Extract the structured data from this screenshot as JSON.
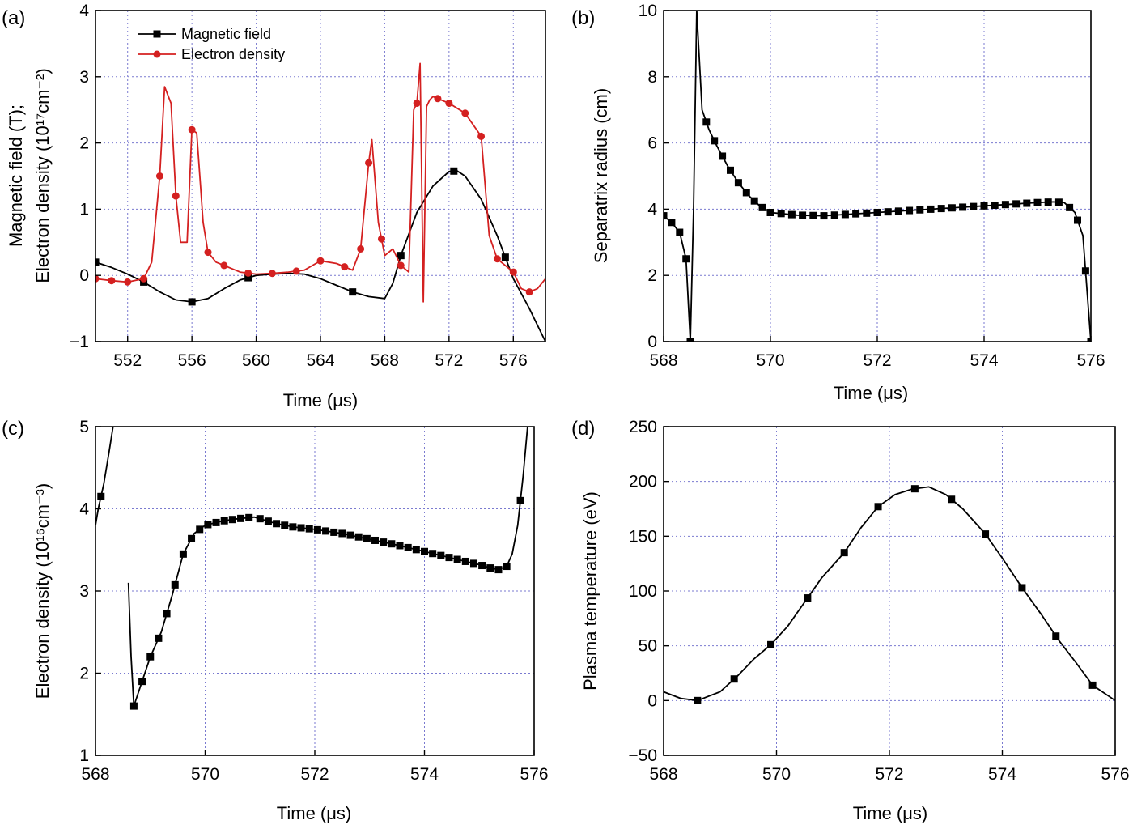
{
  "chart_data": [
    {
      "id": "a",
      "panel_label": "(a)",
      "type": "line",
      "xlabel": "Time (μs)",
      "ylabel_lines": [
        "Magnetic field (T);",
        "Electron density (10¹⁷cm⁻²)"
      ],
      "xlim": [
        550,
        578
      ],
      "ylim": [
        -1,
        4
      ],
      "xticks": [
        552,
        556,
        560,
        564,
        568,
        572,
        576
      ],
      "yticks": [
        -1,
        0,
        1,
        2,
        3,
        4
      ],
      "grid": true,
      "legend_position": "top-left",
      "series": [
        {
          "name": "Magnetic field",
          "color": "#000000",
          "marker": "square",
          "x": [
            550,
            551,
            552,
            553,
            554,
            555,
            556,
            557,
            558,
            559,
            560,
            561,
            562,
            563,
            564,
            565,
            566,
            567,
            568,
            568.5,
            569,
            570,
            571,
            572,
            572.5,
            573,
            574,
            575,
            576,
            577,
            578
          ],
          "y": [
            0.2,
            0.12,
            0.02,
            -0.1,
            -0.25,
            -0.37,
            -0.4,
            -0.35,
            -0.2,
            -0.07,
            0.0,
            0.02,
            0.03,
            0.02,
            -0.05,
            -0.15,
            -0.25,
            -0.32,
            -0.35,
            -0.12,
            0.3,
            0.95,
            1.35,
            1.57,
            1.58,
            1.5,
            1.15,
            0.6,
            -0.05,
            -0.5,
            -1.0
          ],
          "marker_x": [
            550,
            553,
            556,
            559.5,
            566,
            569,
            572.3,
            575.5
          ]
        },
        {
          "name": "Electron density",
          "color": "#d42020",
          "marker": "circle",
          "x": [
            550,
            551,
            552,
            553,
            553.5,
            554,
            554.3,
            554.7,
            555,
            555.3,
            555.7,
            556,
            556.3,
            556.7,
            557,
            557.5,
            558,
            559,
            560,
            561,
            562,
            563,
            564,
            565,
            566,
            566.5,
            567,
            567.2,
            567.6,
            568,
            568.5,
            569,
            569.5,
            569.8,
            570,
            570.2,
            570.4,
            570.6,
            570.8,
            571,
            571.5,
            572,
            573,
            574,
            574.5,
            575,
            576,
            576.5,
            577,
            577.5,
            578
          ],
          "y": [
            -0.05,
            -0.08,
            -0.1,
            -0.05,
            0.2,
            1.5,
            2.85,
            2.6,
            1.2,
            0.5,
            0.5,
            2.2,
            2.15,
            0.8,
            0.35,
            0.2,
            0.15,
            0.05,
            0.02,
            0.03,
            0.05,
            0.08,
            0.22,
            0.18,
            0.08,
            0.4,
            1.7,
            2.05,
            0.8,
            0.3,
            0.4,
            0.15,
            0.05,
            2.5,
            2.6,
            3.2,
            -0.4,
            2.55,
            2.65,
            2.7,
            2.65,
            2.6,
            2.45,
            2.1,
            0.6,
            0.25,
            0.05,
            -0.2,
            -0.25,
            -0.2,
            -0.05
          ],
          "marker_x": [
            550,
            551,
            552,
            553,
            554,
            555,
            556,
            557,
            558,
            559.5,
            561,
            562.5,
            564,
            565.5,
            566.5,
            567,
            567.8,
            569,
            570,
            571.3,
            572,
            573,
            574,
            575,
            576,
            577
          ]
        }
      ]
    },
    {
      "id": "b",
      "panel_label": "(b)",
      "type": "line",
      "xlabel": "Time (μs)",
      "ylabel": "Separatrix radius (cm)",
      "xlim": [
        568,
        576
      ],
      "ylim": [
        0,
        10
      ],
      "xticks": [
        568,
        570,
        572,
        574,
        576
      ],
      "yticks": [
        0,
        2,
        4,
        6,
        8,
        10
      ],
      "grid": true,
      "series": [
        {
          "name": "",
          "color": "#000000",
          "marker": "square",
          "x": [
            568.0,
            568.15,
            568.3,
            568.42,
            568.5,
            568.56,
            568.62,
            568.72,
            568.85,
            569.0,
            569.2,
            569.4,
            569.6,
            569.8,
            570.0,
            570.5,
            571.0,
            571.5,
            572.0,
            572.5,
            573.0,
            573.5,
            574.0,
            574.5,
            575.0,
            575.3,
            575.5,
            575.7,
            575.85,
            576.0
          ],
          "y": [
            3.8,
            3.6,
            3.3,
            2.5,
            0.0,
            4.0,
            10.0,
            7.0,
            6.4,
            5.9,
            5.3,
            4.8,
            4.4,
            4.1,
            3.9,
            3.82,
            3.8,
            3.85,
            3.9,
            3.95,
            4.0,
            4.05,
            4.1,
            4.15,
            4.2,
            4.22,
            4.2,
            3.9,
            3.2,
            0.0
          ],
          "marker_x": [
            568.0,
            568.15,
            568.3,
            568.42,
            568.5,
            568.8,
            568.95,
            569.1,
            569.25,
            569.4,
            569.55,
            569.7,
            569.85,
            570.0,
            570.2,
            570.4,
            570.6,
            570.8,
            571.0,
            571.2,
            571.4,
            571.6,
            571.8,
            572.0,
            572.2,
            572.4,
            572.6,
            572.8,
            573.0,
            573.2,
            573.4,
            573.6,
            573.8,
            574.0,
            574.2,
            574.4,
            574.6,
            574.8,
            575.0,
            575.2,
            575.4,
            575.6,
            575.75,
            575.9,
            576.0
          ]
        }
      ]
    },
    {
      "id": "c",
      "panel_label": "(c)",
      "type": "line",
      "xlabel": "Time (μs)",
      "ylabel": "Electron density (10¹⁶cm⁻³)",
      "xlim": [
        568,
        576
      ],
      "ylim": [
        1,
        5
      ],
      "xticks": [
        568,
        570,
        572,
        574,
        576
      ],
      "yticks": [
        1,
        2,
        3,
        4,
        5
      ],
      "grid": true,
      "series": [
        {
          "name": "",
          "color": "#000000",
          "marker": "square",
          "segments": [
            {
              "x": [
                568.0,
                568.05,
                568.15,
                568.25,
                568.32
              ],
              "y": [
                3.8,
                4.0,
                4.3,
                4.7,
                5.0
              ]
            },
            {
              "x": [
                568.6,
                568.65,
                568.7,
                568.85,
                569.0,
                569.2,
                569.4,
                569.6,
                569.8,
                570.0,
                570.3,
                570.6,
                570.9,
                571.0,
                571.3,
                571.6,
                572.0,
                572.5,
                573.0,
                573.5,
                574.0,
                574.5,
                575.0,
                575.2,
                575.35,
                575.5,
                575.6,
                575.7,
                575.8,
                575.88
              ],
              "y": [
                3.1,
                2.2,
                1.6,
                1.9,
                2.2,
                2.5,
                2.95,
                3.45,
                3.7,
                3.8,
                3.85,
                3.88,
                3.9,
                3.88,
                3.82,
                3.78,
                3.75,
                3.7,
                3.63,
                3.56,
                3.48,
                3.4,
                3.32,
                3.28,
                3.26,
                3.3,
                3.45,
                3.8,
                4.4,
                5.0
              ]
            }
          ],
          "marker_x": [
            568.1,
            568.7,
            568.85,
            569.0,
            569.15,
            569.3,
            569.45,
            569.6,
            569.75,
            569.9,
            570.05,
            570.2,
            570.35,
            570.5,
            570.65,
            570.8,
            571.0,
            571.15,
            571.3,
            571.45,
            571.6,
            571.75,
            571.9,
            572.05,
            572.2,
            572.35,
            572.5,
            572.65,
            572.8,
            572.95,
            573.1,
            573.25,
            573.4,
            573.55,
            573.7,
            573.85,
            574.0,
            574.15,
            574.3,
            574.45,
            574.6,
            574.75,
            574.9,
            575.05,
            575.2,
            575.35,
            575.5,
            575.75
          ]
        }
      ]
    },
    {
      "id": "d",
      "panel_label": "(d)",
      "type": "line",
      "xlabel": "Time (μs)",
      "ylabel": "Plasma temperature (eV)",
      "xlim": [
        568,
        576
      ],
      "ylim": [
        -50,
        250
      ],
      "xticks": [
        568,
        570,
        572,
        574,
        576
      ],
      "yticks": [
        -50,
        0,
        50,
        100,
        150,
        200,
        250
      ],
      "grid": true,
      "series": [
        {
          "name": "",
          "color": "#000000",
          "marker": "square",
          "x": [
            568.0,
            568.3,
            568.6,
            569.0,
            569.3,
            569.6,
            569.9,
            570.2,
            570.5,
            570.8,
            571.2,
            571.5,
            571.8,
            572.1,
            572.4,
            572.7,
            573.0,
            573.3,
            573.7,
            574.0,
            574.35,
            574.7,
            575.0,
            575.3,
            575.6,
            576.0
          ],
          "y": [
            8,
            2,
            0,
            8,
            22,
            38,
            51,
            68,
            90,
            112,
            135,
            158,
            177,
            188,
            193,
            195,
            188,
            175,
            152,
            130,
            103,
            78,
            55,
            35,
            14,
            0
          ],
          "marker_x": [
            568.6,
            569.25,
            569.9,
            570.55,
            571.2,
            571.8,
            572.45,
            573.1,
            573.7,
            574.35,
            574.95,
            575.6
          ]
        }
      ]
    }
  ]
}
